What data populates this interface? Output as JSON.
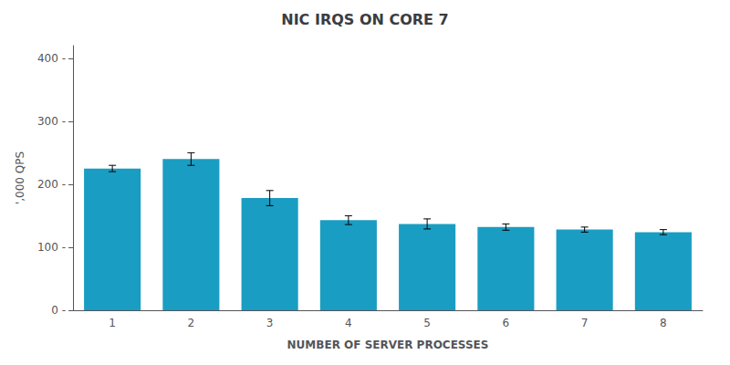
{
  "chart_data": {
    "type": "bar",
    "title": "NIC IRQS ON CORE 7",
    "xlabel": "NUMBER OF SERVER PROCESSES",
    "ylabel": "',000 QPS",
    "categories": [
      "1",
      "2",
      "3",
      "4",
      "5",
      "6",
      "7",
      "8"
    ],
    "values": [
      225,
      240,
      178,
      143,
      137,
      132,
      128,
      124
    ],
    "errors": [
      5,
      10,
      12,
      7,
      8,
      5,
      4,
      4
    ],
    "color": "#1A9DC2",
    "ylim": [
      0,
      420
    ],
    "yticks": [
      {
        "value": 0,
        "label": "0 -"
      },
      {
        "value": 100,
        "label": "100 -"
      },
      {
        "value": 200,
        "label": "200 -"
      },
      {
        "value": 300,
        "label": "300 -"
      },
      {
        "value": 400,
        "label": "400 -"
      }
    ],
    "grid": false
  }
}
